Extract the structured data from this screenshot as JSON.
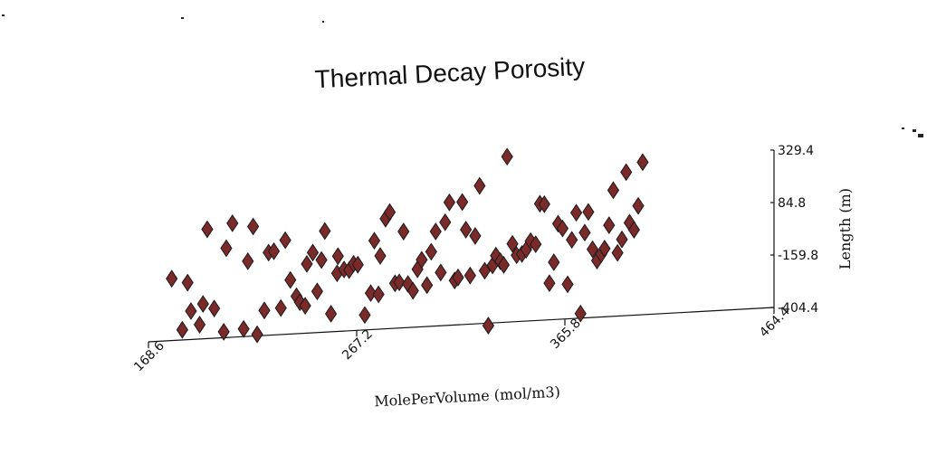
{
  "chart_data": {
    "type": "scatter",
    "title": "Thermal Decay Porosity",
    "xlabel": "MolePerVolume (mol/m3)",
    "ylabel": "Length (m)",
    "xlim": [
      168.6,
      464.4
    ],
    "ylim": [
      -404.4,
      329.4
    ],
    "x_ticks": [
      "168.6",
      "267.2",
      "365.8",
      "464.4"
    ],
    "y_ticks": [
      "329.4",
      "84.8",
      "-159.8",
      "-404.4"
    ],
    "grid": false,
    "marker": "diamond",
    "marker_color": "#7b2a2a",
    "points": [
      [
        179.6,
        -115.9
      ],
      [
        184.6,
        -357.0
      ],
      [
        187.1,
        -138.4
      ],
      [
        188.7,
        -271.8
      ],
      [
        192.8,
        -337.6
      ],
      [
        194.4,
        -241.9
      ],
      [
        196.4,
        105.4
      ],
      [
        199.7,
        -265.6
      ],
      [
        204.2,
        -377.0
      ],
      [
        205.4,
        12.2
      ],
      [
        208.3,
        127.1
      ],
      [
        213.6,
        -368.8
      ],
      [
        215.6,
        -54.1
      ],
      [
        218.1,
        106.6
      ],
      [
        220.0,
        -397.2
      ],
      [
        223.4,
        -287.8
      ],
      [
        225.4,
        -19.2
      ],
      [
        227.9,
        -14.0
      ],
      [
        231.2,
        -280.6
      ],
      [
        233.3,
        34.5
      ],
      [
        235.7,
        -152.5
      ],
      [
        238.6,
        -230.0
      ],
      [
        240.2,
        -258.4
      ],
      [
        242.7,
        -276.6
      ],
      [
        243.5,
        -81.9
      ],
      [
        246.3,
        -30.4
      ],
      [
        248.4,
        -212.5
      ],
      [
        250.4,
        -67.3
      ],
      [
        252.0,
        67.2
      ],
      [
        254.9,
        -320.2
      ],
      [
        257.8,
        -133.3
      ],
      [
        258.2,
        -53.6
      ],
      [
        261.1,
        -117.0
      ],
      [
        263.5,
        -121.6
      ],
      [
        265.6,
        -93.2
      ],
      [
        267.6,
        -98.3
      ],
      [
        270.9,
        -335.0
      ],
      [
        273.7,
        -234.2
      ],
      [
        275.4,
        9.4
      ],
      [
        277.4,
        -241.9
      ],
      [
        278.2,
        -63.1
      ],
      [
        280.7,
        109.1
      ],
      [
        282.7,
        138.6
      ],
      [
        285.2,
        -194.7
      ],
      [
        287.2,
        -191.5
      ],
      [
        289.2,
        44.6
      ],
      [
        291.3,
        -201.1
      ],
      [
        293.7,
        -234.1
      ],
      [
        295.8,
        -135.1
      ],
      [
        297.8,
        -91.9
      ],
      [
        300.3,
        -211.4
      ],
      [
        302.3,
        -56.8
      ],
      [
        304.4,
        36.6
      ],
      [
        306.8,
        -155.9
      ],
      [
        308.9,
        77.4
      ],
      [
        310.9,
        168.8
      ],
      [
        313.4,
        -196.8
      ],
      [
        315.0,
        -183.5
      ],
      [
        317.0,
        167.1
      ],
      [
        318.7,
        37.4
      ],
      [
        320.7,
        -177.6
      ],
      [
        323.1,
        5.6
      ],
      [
        325.2,
        238.0
      ],
      [
        327.6,
        -159.1
      ],
      [
        329.3,
        -415.9
      ],
      [
        331.3,
        -136.3
      ],
      [
        332.9,
        -91.5
      ],
      [
        335.0,
        -118.8
      ],
      [
        336.6,
        -136.7
      ],
      [
        338.2,
        367.2
      ],
      [
        340.7,
        -40.7
      ],
      [
        342.7,
        -94.9
      ],
      [
        345.2,
        -90.5
      ],
      [
        347.2,
        -71.4
      ],
      [
        349.3,
        -32.7
      ],
      [
        351.7,
        -48.5
      ],
      [
        353.7,
        139.4
      ],
      [
        355.8,
        136.1
      ],
      [
        358.2,
        -233.6
      ],
      [
        360.3,
        -137.0
      ],
      [
        362.3,
        41.4
      ],
      [
        364.4,
        18.3
      ],
      [
        366.8,
        -243.6
      ],
      [
        368.8,
        -37.3
      ],
      [
        370.9,
        88.1
      ],
      [
        372.9,
        -383.2
      ],
      [
        374.9,
        -6.9
      ],
      [
        376.6,
        88.5
      ],
      [
        378.6,
        -86.3
      ],
      [
        380.7,
        -140.3
      ],
      [
        382.7,
        -111.8
      ],
      [
        384.3,
        -86.6
      ],
      [
        386.4,
        21.3
      ],
      [
        388.4,
        183.6
      ],
      [
        390.4,
        -109.7
      ],
      [
        392.5,
        -47.9
      ],
      [
        394.5,
        264.4
      ],
      [
        396.1,
        27.6
      ],
      [
        398.2,
        -6.2
      ],
      [
        400.2,
        104.1
      ],
      [
        402.3,
        306.8
      ]
    ]
  }
}
